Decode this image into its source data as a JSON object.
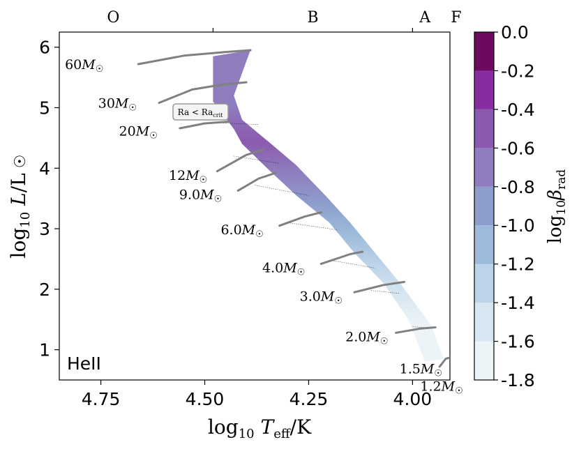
{
  "chart_data": {
    "type": "scatter",
    "subtype": "HR-diagram with convective zone shading",
    "panel_label": "HeII",
    "annotation": "Ra < Ra_crit",
    "xlabel": "log10 Teff/K",
    "ylabel": "log10 L/L☉",
    "xlim": [
      4.85,
      3.91
    ],
    "ylim": [
      0.5,
      6.25
    ],
    "x_ticks": [
      {
        "value": 4.75,
        "label": "4.75"
      },
      {
        "value": 4.5,
        "label": "4.50"
      },
      {
        "value": 4.25,
        "label": "4.25"
      },
      {
        "value": 4.0,
        "label": "4.00"
      }
    ],
    "y_ticks": [
      {
        "value": 1,
        "label": "1"
      },
      {
        "value": 2,
        "label": "2"
      },
      {
        "value": 3,
        "label": "3"
      },
      {
        "value": 4,
        "label": "4"
      },
      {
        "value": 5,
        "label": "5"
      },
      {
        "value": 6,
        "label": "6"
      }
    ],
    "spectral_classes": [
      {
        "label": "O",
        "x": 4.72
      },
      {
        "label": "B",
        "x": 4.24
      },
      {
        "label": "A",
        "x": 3.97
      },
      {
        "label": "F",
        "x": 3.895
      }
    ],
    "spectral_boundaries": [
      4.48,
      4.0,
      3.88
    ],
    "colorbar": {
      "label": "log10 β_rad",
      "range": [
        -1.8,
        0.0
      ],
      "tick_labels": [
        "0.0",
        "-0.2",
        "-0.4",
        "-0.6",
        "-0.8",
        "-1.0",
        "-1.2",
        "-1.4",
        "-1.6",
        "-1.8"
      ],
      "bins": [
        {
          "from": -1.8,
          "to": -1.6,
          "color": "#edf4f8"
        },
        {
          "from": -1.6,
          "to": -1.4,
          "color": "#d7e6f1"
        },
        {
          "from": -1.4,
          "to": -1.2,
          "color": "#bdd3e8"
        },
        {
          "from": -1.2,
          "to": -1.0,
          "color": "#9dbada"
        },
        {
          "from": -1.0,
          "to": -0.8,
          "color": "#8d9dcc"
        },
        {
          "from": -0.8,
          "to": -0.6,
          "color": "#8f7dbe"
        },
        {
          "from": -0.6,
          "to": -0.4,
          "color": "#8a5aae"
        },
        {
          "from": -0.4,
          "to": -0.2,
          "color": "#882da0"
        },
        {
          "from": -0.2,
          "to": 0.0,
          "color": "#6b0a5f"
        }
      ]
    },
    "band_left_edge": [
      [
        4.48,
        5.85
      ],
      [
        4.48,
        5.1
      ],
      [
        4.43,
        4.65
      ],
      [
        4.41,
        4.4
      ],
      [
        4.35,
        4.0
      ],
      [
        4.28,
        3.55
      ],
      [
        4.2,
        3.1
      ],
      [
        4.14,
        2.6
      ],
      [
        4.07,
        2.1
      ],
      [
        4.01,
        1.5
      ],
      [
        3.97,
        0.8
      ]
    ],
    "band_right_edge": [
      [
        3.925,
        0.85
      ],
      [
        3.955,
        1.4
      ],
      [
        4.03,
        2.1
      ],
      [
        4.09,
        2.6
      ],
      [
        4.15,
        3.1
      ],
      [
        4.21,
        3.55
      ],
      [
        4.28,
        4.05
      ],
      [
        4.34,
        4.4
      ],
      [
        4.41,
        4.8
      ],
      [
        4.43,
        5.2
      ],
      [
        4.39,
        5.95
      ]
    ],
    "colour_stops": [
      {
        "logL": 0.8,
        "value": -1.75
      },
      {
        "logL": 1.4,
        "value": -1.6
      },
      {
        "logL": 1.9,
        "value": -1.45
      },
      {
        "logL": 2.4,
        "value": -1.25
      },
      {
        "logL": 2.9,
        "value": -1.1
      },
      {
        "logL": 3.4,
        "value": -0.95
      },
      {
        "logL": 3.9,
        "value": -0.6
      },
      {
        "logL": 4.4,
        "value": -0.55
      },
      {
        "logL": 5.0,
        "value": -0.6
      },
      {
        "logL": 5.5,
        "value": -0.6
      },
      {
        "logL": 5.9,
        "value": -0.62
      }
    ],
    "tracks": [
      {
        "label": "60M☉",
        "points": [
          [
            4.66,
            5.72
          ],
          [
            4.55,
            5.86
          ],
          [
            4.45,
            5.92
          ],
          [
            4.39,
            5.95
          ]
        ]
      },
      {
        "label": "30M☉",
        "points": [
          [
            4.61,
            5.08
          ],
          [
            4.53,
            5.3
          ],
          [
            4.46,
            5.38
          ],
          [
            4.4,
            5.42
          ]
        ]
      },
      {
        "label": "20M☉",
        "points": [
          [
            4.56,
            4.66
          ],
          [
            4.5,
            4.74
          ],
          [
            4.44,
            4.77
          ]
        ]
      },
      {
        "label": "12M☉",
        "points": [
          [
            4.47,
            3.95
          ],
          [
            4.4,
            4.22
          ],
          [
            4.36,
            4.3
          ]
        ]
      },
      {
        "label": "9.0M☉",
        "points": [
          [
            4.42,
            3.63
          ],
          [
            4.37,
            3.83
          ],
          [
            4.33,
            3.92
          ]
        ]
      },
      {
        "label": "6.0M☉",
        "points": [
          [
            4.32,
            3.05
          ],
          [
            4.26,
            3.2
          ],
          [
            4.22,
            3.27
          ]
        ]
      },
      {
        "label": "4.0M☉",
        "points": [
          [
            4.22,
            2.42
          ],
          [
            4.15,
            2.58
          ],
          [
            4.12,
            2.62
          ]
        ]
      },
      {
        "label": "3.0M☉",
        "points": [
          [
            4.14,
            1.95
          ],
          [
            4.07,
            2.07
          ],
          [
            4.02,
            2.12
          ]
        ]
      },
      {
        "label": "2.0M☉",
        "points": [
          [
            4.04,
            1.28
          ],
          [
            3.98,
            1.35
          ],
          [
            3.945,
            1.37
          ]
        ]
      },
      {
        "label": "1.5M☉",
        "points": [
          [
            3.935,
            0.72
          ],
          [
            3.92,
            0.85
          ],
          [
            3.905,
            0.88
          ]
        ]
      },
      {
        "label": "1.2M☉",
        "points": []
      }
    ],
    "mass_labels": [
      {
        "mass": "60",
        "x": 4.79,
        "y": 5.72
      },
      {
        "mass": "30",
        "x": 4.71,
        "y": 5.08
      },
      {
        "mass": "20",
        "x": 4.66,
        "y": 4.62
      },
      {
        "mass": "12",
        "x": 4.54,
        "y": 3.89
      },
      {
        "mass": "9.0",
        "x": 4.51,
        "y": 3.57
      },
      {
        "mass": "6.0",
        "x": 4.41,
        "y": 2.99
      },
      {
        "mass": "4.0",
        "x": 4.31,
        "y": 2.36
      },
      {
        "mass": "3.0",
        "x": 4.22,
        "y": 1.89
      },
      {
        "mass": "2.0",
        "x": 4.11,
        "y": 1.22
      },
      {
        "mass": "1.5",
        "x": 3.98,
        "y": 0.69
      },
      {
        "mass": "1.2",
        "x": 3.93,
        "y": 0.4
      }
    ]
  }
}
